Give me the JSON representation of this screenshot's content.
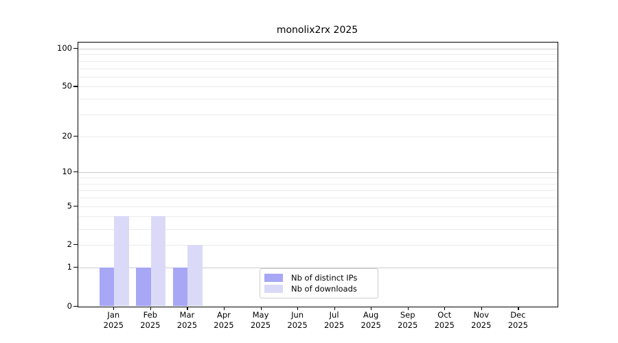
{
  "figure": {
    "title": "monolix2rx 2025",
    "background": "#ffffff"
  },
  "chart_data": {
    "type": "bar",
    "title": "monolix2rx 2025",
    "categories": [
      "Jan",
      "Feb",
      "Mar",
      "Apr",
      "May",
      "Jun",
      "Jul",
      "Aug",
      "Sep",
      "Oct",
      "Nov",
      "Dec"
    ],
    "x_tick_year_line": "2025",
    "series": [
      {
        "name": "Nb of distinct IPs",
        "color": "#a7a7f6",
        "values": [
          1,
          1,
          1,
          0,
          0,
          0,
          0,
          0,
          0,
          0,
          0,
          0
        ]
      },
      {
        "name": "Nb of downloads",
        "color": "#dadaf8",
        "values": [
          4,
          4,
          2,
          0,
          0,
          0,
          0,
          0,
          0,
          0,
          0,
          0
        ]
      }
    ],
    "xlabel": "",
    "ylabel": "",
    "y_axis": {
      "scale": "log1p",
      "range": [
        0,
        100
      ],
      "tick_values": [
        0,
        1,
        2,
        5,
        10,
        20,
        50,
        100
      ],
      "major_gridlines": [
        1,
        10,
        100
      ],
      "minor_gridlines": [
        2,
        3,
        4,
        5,
        6,
        7,
        8,
        9,
        20,
        30,
        40,
        50,
        60,
        70,
        80,
        90
      ]
    },
    "legend": {
      "position": "inside-bottom-center",
      "entries": [
        "Nb of distinct IPs",
        "Nb of downloads"
      ]
    },
    "grid": true,
    "colors": {
      "major_grid": "#cccccc",
      "minor_grid": "#ebebeb",
      "spine": "#000000",
      "text": "#000000"
    }
  }
}
